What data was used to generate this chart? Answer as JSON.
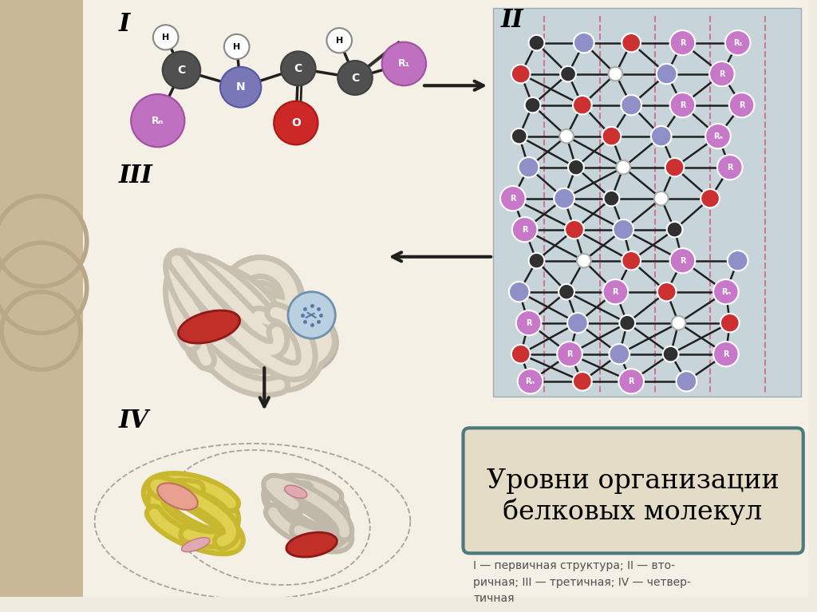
{
  "bg_color": "#f0ebe0",
  "left_strip_color": "#c8b898",
  "main_bg": "#f5f0e5",
  "title_box_bg": "#e5dcc8",
  "title_box_border": "#4a7a7a",
  "title_line1": "Уровни организации",
  "title_line2": "белковых молекул",
  "subtitle_text": "I — первичная структура; II — вто-\nричная; III — третичная; IV — четвер-\nтичная",
  "roman_I": "I",
  "roman_II": "II",
  "roman_III": "III",
  "roman_IV": "IV",
  "helix_bg": "#b8ccd8",
  "atom_C": "#505050",
  "atom_N": "#7878b8",
  "atom_O": "#cc2828",
  "atom_R": "#c070c0",
  "atom_H": "#ffffff",
  "atom_R_dark": "#b060b0",
  "atom_blue": "#6888b8",
  "atom_white_small": "#ffffff",
  "bond_color": "#303030",
  "ribbon_color": "#ccc4b4",
  "ribbon_edge": "#b8b0a0",
  "yellow_ribbon": "#d8cc50",
  "yellow_ribbon_light": "#e8dc70",
  "heme_red": "#cc3030",
  "pink_r": "#e890a0",
  "arrow_color": "#202020"
}
